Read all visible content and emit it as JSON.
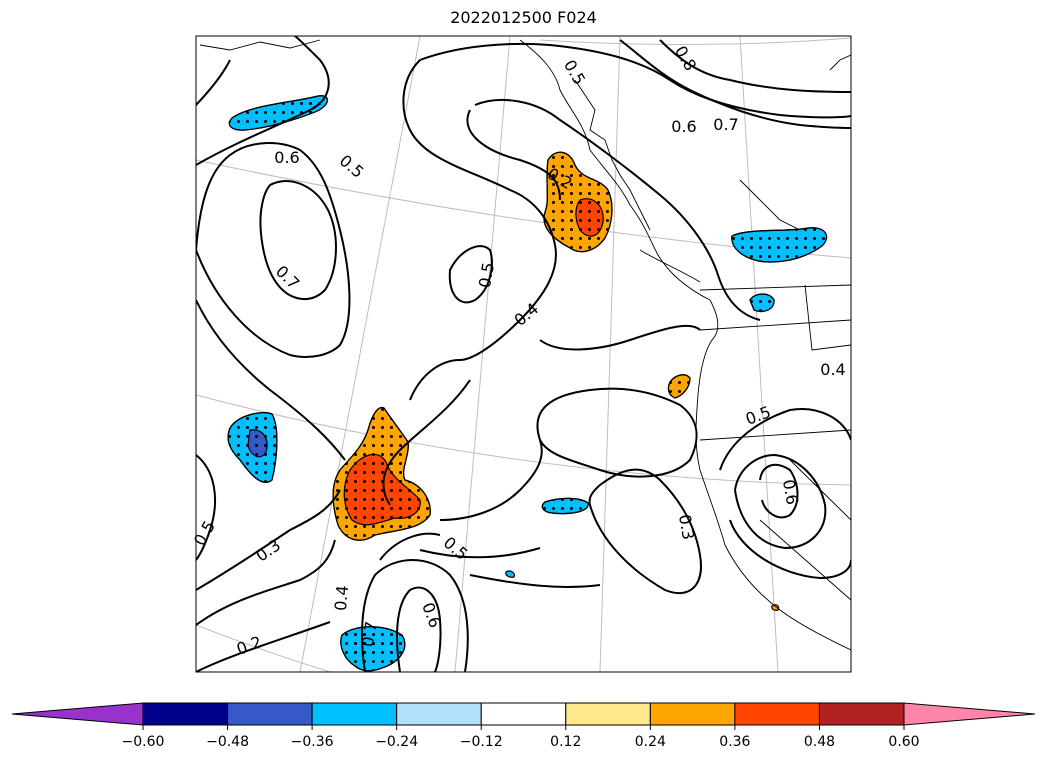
{
  "title": "2022012500 F024",
  "colorbar": {
    "colors": [
      "#9932cc",
      "#00008b",
      "#3559c7",
      "#00bfff",
      "#b0e0fa",
      "#ffffff",
      "#ffe98c",
      "#ffa500",
      "#ff4500",
      "#b22222",
      "#ff86a8"
    ],
    "ticks": [
      "−0.60",
      "−0.48",
      "−0.36",
      "−0.24",
      "−0.12",
      "0.12",
      "0.24",
      "0.36",
      "0.48",
      "0.60"
    ]
  },
  "contour_labels": [
    "0.8",
    "0.7",
    "0.6",
    "0.5",
    "0.6",
    "0.5",
    "0.7",
    "0.2",
    "0.5",
    "0.4",
    "0.4",
    "0.5",
    "0.6",
    "0.3",
    "0.5",
    "0.3",
    "0.5",
    "0.4",
    "0.6",
    "0.7",
    "0.2"
  ]
}
